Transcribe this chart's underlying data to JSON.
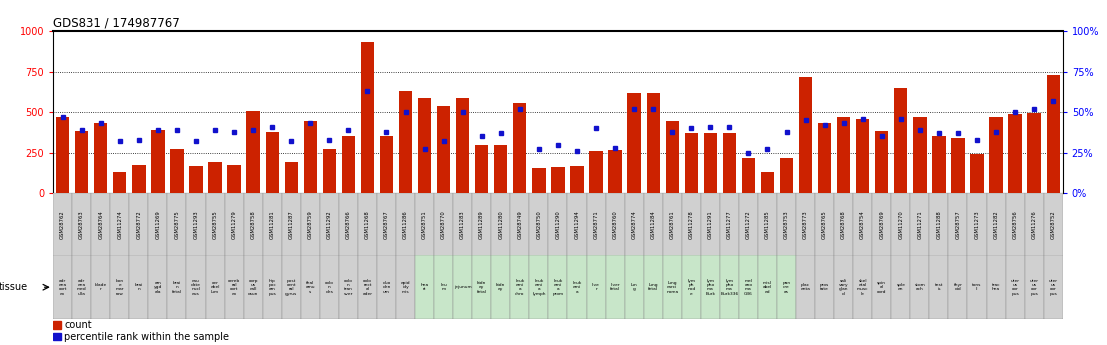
{
  "title": "GDS831 / 174987767",
  "bars": [
    {
      "gsm": "GSM28762",
      "tissue": "adr\nena\ncort\nex",
      "count": 469,
      "pct": 47,
      "bg_gsm": "#d0d0d0",
      "bg_tissue": "#d0d0d0"
    },
    {
      "gsm": "GSM28763",
      "tissue": "adr\nena\nmed\nulla",
      "count": 385,
      "pct": 39,
      "bg_gsm": "#d0d0d0",
      "bg_tissue": "#d0d0d0"
    },
    {
      "gsm": "GSM28764",
      "tissue": "blade\nr",
      "count": 430,
      "pct": 43,
      "bg_gsm": "#d0d0d0",
      "bg_tissue": "#d0d0d0"
    },
    {
      "gsm": "GSM11274",
      "tissue": "bon\ne\nmar\nrow",
      "count": 130,
      "pct": 32,
      "bg_gsm": "#d0d0d0",
      "bg_tissue": "#d0d0d0"
    },
    {
      "gsm": "GSM28772",
      "tissue": "brai\nn",
      "count": 175,
      "pct": 33,
      "bg_gsm": "#d0d0d0",
      "bg_tissue": "#d0d0d0"
    },
    {
      "gsm": "GSM11269",
      "tissue": "am\nygd\nala",
      "count": 390,
      "pct": 39,
      "bg_gsm": "#d0d0d0",
      "bg_tissue": "#d0d0d0"
    },
    {
      "gsm": "GSM28775",
      "tissue": "brai\nn\nfetal",
      "count": 275,
      "pct": 39,
      "bg_gsm": "#d0d0d0",
      "bg_tissue": "#d0d0d0"
    },
    {
      "gsm": "GSM11293",
      "tissue": "cau\ndate\nnucl\neus",
      "count": 165,
      "pct": 32,
      "bg_gsm": "#d0d0d0",
      "bg_tissue": "#d0d0d0"
    },
    {
      "gsm": "GSM28755",
      "tissue": "cer\nebel\nlum",
      "count": 190,
      "pct": 39,
      "bg_gsm": "#d0d0d0",
      "bg_tissue": "#d0d0d0"
    },
    {
      "gsm": "GSM11279",
      "tissue": "cereb\nral\ncort\nex",
      "count": 175,
      "pct": 38,
      "bg_gsm": "#d0d0d0",
      "bg_tissue": "#d0d0d0"
    },
    {
      "gsm": "GSM28758",
      "tissue": "corp\nus\ncall\nosun",
      "count": 510,
      "pct": 39,
      "bg_gsm": "#d0d0d0",
      "bg_tissue": "#d0d0d0"
    },
    {
      "gsm": "GSM11281",
      "tissue": "hip\npoc\nam\npus",
      "count": 380,
      "pct": 41,
      "bg_gsm": "#d0d0d0",
      "bg_tissue": "#d0d0d0"
    },
    {
      "gsm": "GSM11287",
      "tissue": "post\ncent\nral\ngyrus",
      "count": 190,
      "pct": 32,
      "bg_gsm": "#d0d0d0",
      "bg_tissue": "#d0d0d0"
    },
    {
      "gsm": "GSM28759",
      "tissue": "thal\namu\ns",
      "count": 445,
      "pct": 43,
      "bg_gsm": "#d0d0d0",
      "bg_tissue": "#d0d0d0"
    },
    {
      "gsm": "GSM11292",
      "tissue": "colo\nn\ndes",
      "count": 275,
      "pct": 33,
      "bg_gsm": "#d0d0d0",
      "bg_tissue": "#d0d0d0"
    },
    {
      "gsm": "GSM28766",
      "tissue": "colo\nn\ntran\nsver",
      "count": 350,
      "pct": 39,
      "bg_gsm": "#d0d0d0",
      "bg_tissue": "#d0d0d0"
    },
    {
      "gsm": "GSM11268",
      "tissue": "colo\nrect\nal\nader",
      "count": 930,
      "pct": 63,
      "bg_gsm": "#d0d0d0",
      "bg_tissue": "#d0d0d0"
    },
    {
      "gsm": "GSM28767",
      "tissue": "duo\nden\num",
      "count": 355,
      "pct": 38,
      "bg_gsm": "#d0d0d0",
      "bg_tissue": "#d0d0d0"
    },
    {
      "gsm": "GSM11286",
      "tissue": "epid\nidy\nmis",
      "count": 630,
      "pct": 50,
      "bg_gsm": "#d0d0d0",
      "bg_tissue": "#d0d0d0"
    },
    {
      "gsm": "GSM28751",
      "tissue": "hea\nrt",
      "count": 590,
      "pct": 27,
      "bg_gsm": "#d0d0d0",
      "bg_tissue": "#c8e6c9"
    },
    {
      "gsm": "GSM28770",
      "tissue": "leu\nm",
      "count": 540,
      "pct": 32,
      "bg_gsm": "#d0d0d0",
      "bg_tissue": "#c8e6c9"
    },
    {
      "gsm": "GSM11283",
      "tissue": "jejunum",
      "count": 590,
      "pct": 50,
      "bg_gsm": "#d0d0d0",
      "bg_tissue": "#c8e6c9"
    },
    {
      "gsm": "GSM11289",
      "tissue": "kidn\ney\nfetal",
      "count": 295,
      "pct": 35,
      "bg_gsm": "#d0d0d0",
      "bg_tissue": "#c8e6c9"
    },
    {
      "gsm": "GSM11280",
      "tissue": "kidn\ney",
      "count": 300,
      "pct": 37,
      "bg_gsm": "#d0d0d0",
      "bg_tissue": "#c8e6c9"
    },
    {
      "gsm": "GSM28749",
      "tissue": "leuk\nemi\na\nchro",
      "count": 555,
      "pct": 52,
      "bg_gsm": "#d0d0d0",
      "bg_tissue": "#c8e6c9"
    },
    {
      "gsm": "GSM28750",
      "tissue": "leuk\nemi\na\nlymph",
      "count": 155,
      "pct": 27,
      "bg_gsm": "#d0d0d0",
      "bg_tissue": "#c8e6c9"
    },
    {
      "gsm": "GSM11290",
      "tissue": "leuk\nemi\na\nprom",
      "count": 160,
      "pct": 30,
      "bg_gsm": "#d0d0d0",
      "bg_tissue": "#c8e6c9"
    },
    {
      "gsm": "GSM11294",
      "tissue": "leuk\nemi\na",
      "count": 165,
      "pct": 26,
      "bg_gsm": "#d0d0d0",
      "bg_tissue": "#c8e6c9"
    },
    {
      "gsm": "GSM28771",
      "tissue": "live\nr",
      "count": 260,
      "pct": 40,
      "bg_gsm": "#d0d0d0",
      "bg_tissue": "#c8e6c9"
    },
    {
      "gsm": "GSM28760",
      "tissue": "liver\nfetal",
      "count": 265,
      "pct": 28,
      "bg_gsm": "#d0d0d0",
      "bg_tissue": "#c8e6c9"
    },
    {
      "gsm": "GSM28774",
      "tissue": "lun\ng",
      "count": 620,
      "pct": 52,
      "bg_gsm": "#d0d0d0",
      "bg_tissue": "#c8e6c9"
    },
    {
      "gsm": "GSM11284",
      "tissue": "lung\nfetal",
      "count": 615,
      "pct": 52,
      "bg_gsm": "#d0d0d0",
      "bg_tissue": "#c8e6c9"
    },
    {
      "gsm": "GSM28761",
      "tissue": "lung\ncarci\nnoma",
      "count": 445,
      "pct": 38,
      "bg_gsm": "#d0d0d0",
      "bg_tissue": "#c8e6c9"
    },
    {
      "gsm": "GSM11278",
      "tissue": "lym\nph\nnod\ne",
      "count": 370,
      "pct": 40,
      "bg_gsm": "#d0d0d0",
      "bg_tissue": "#c8e6c9"
    },
    {
      "gsm": "GSM11291",
      "tissue": "lym\npho\nma\nBurk",
      "count": 370,
      "pct": 41,
      "bg_gsm": "#d0d0d0",
      "bg_tissue": "#c8e6c9"
    },
    {
      "gsm": "GSM11277",
      "tissue": "lym\npho\nma\nBurk336",
      "count": 370,
      "pct": 41,
      "bg_gsm": "#d0d0d0",
      "bg_tissue": "#c8e6c9"
    },
    {
      "gsm": "GSM11272",
      "tissue": "mel\nano\nma\nG36",
      "count": 215,
      "pct": 25,
      "bg_gsm": "#d0d0d0",
      "bg_tissue": "#c8e6c9"
    },
    {
      "gsm": "GSM11285",
      "tissue": "misl\nabel\ned",
      "count": 130,
      "pct": 27,
      "bg_gsm": "#d0d0d0",
      "bg_tissue": "#c8e6c9"
    },
    {
      "gsm": "GSM28753",
      "tissue": "pan\ncre\nas",
      "count": 215,
      "pct": 38,
      "bg_gsm": "#d0d0d0",
      "bg_tissue": "#c8e6c9"
    },
    {
      "gsm": "GSM28773",
      "tissue": "plac\nenta",
      "count": 715,
      "pct": 45,
      "bg_gsm": "#d0d0d0",
      "bg_tissue": "#d0d0d0"
    },
    {
      "gsm": "GSM28765",
      "tissue": "pros\ntate",
      "count": 430,
      "pct": 42,
      "bg_gsm": "#d0d0d0",
      "bg_tissue": "#d0d0d0"
    },
    {
      "gsm": "GSM28768",
      "tissue": "sali\nvary\nglan\nd",
      "count": 470,
      "pct": 43,
      "bg_gsm": "#d0d0d0",
      "bg_tissue": "#d0d0d0"
    },
    {
      "gsm": "GSM28754",
      "tissue": "skel\netal\nmusc\nle",
      "count": 460,
      "pct": 46,
      "bg_gsm": "#d0d0d0",
      "bg_tissue": "#d0d0d0"
    },
    {
      "gsm": "GSM28769",
      "tissue": "spin\nal\ncord",
      "count": 385,
      "pct": 35,
      "bg_gsm": "#d0d0d0",
      "bg_tissue": "#d0d0d0"
    },
    {
      "gsm": "GSM11270",
      "tissue": "sple\nen",
      "count": 650,
      "pct": 46,
      "bg_gsm": "#d0d0d0",
      "bg_tissue": "#d0d0d0"
    },
    {
      "gsm": "GSM11271",
      "tissue": "stom\nach",
      "count": 470,
      "pct": 39,
      "bg_gsm": "#d0d0d0",
      "bg_tissue": "#d0d0d0"
    },
    {
      "gsm": "GSM11288",
      "tissue": "test\nis",
      "count": 350,
      "pct": 37,
      "bg_gsm": "#d0d0d0",
      "bg_tissue": "#d0d0d0"
    },
    {
      "gsm": "GSM28757",
      "tissue": "thyr\noid",
      "count": 340,
      "pct": 37,
      "bg_gsm": "#d0d0d0",
      "bg_tissue": "#d0d0d0"
    },
    {
      "gsm": "GSM11273",
      "tissue": "tons\nil",
      "count": 240,
      "pct": 33,
      "bg_gsm": "#d0d0d0",
      "bg_tissue": "#d0d0d0"
    },
    {
      "gsm": "GSM11282",
      "tissue": "trac\nhea",
      "count": 470,
      "pct": 38,
      "bg_gsm": "#d0d0d0",
      "bg_tissue": "#d0d0d0"
    },
    {
      "gsm": "GSM28756",
      "tissue": "uter\nus\ncor\npus",
      "count": 490,
      "pct": 50,
      "bg_gsm": "#d0d0d0",
      "bg_tissue": "#d0d0d0"
    },
    {
      "gsm": "GSM11276",
      "tissue": "uter\nus\ncor\npus",
      "count": 495,
      "pct": 52,
      "bg_gsm": "#d0d0d0",
      "bg_tissue": "#d0d0d0"
    },
    {
      "gsm": "GSM28752",
      "tissue": "uter\nus\ncor\npus",
      "count": 730,
      "pct": 57,
      "bg_gsm": "#d0d0d0",
      "bg_tissue": "#d0d0d0"
    }
  ],
  "ylim_left": [
    0,
    1000
  ],
  "ylim_right": [
    0,
    100
  ],
  "yticks_left": [
    0,
    250,
    500,
    750,
    1000
  ],
  "yticks_right": [
    0,
    25,
    50,
    75,
    100
  ],
  "bar_color": "#cc2200",
  "dot_color": "#1111cc",
  "legend_count": "count",
  "legend_pct": "percentile rank within the sample"
}
